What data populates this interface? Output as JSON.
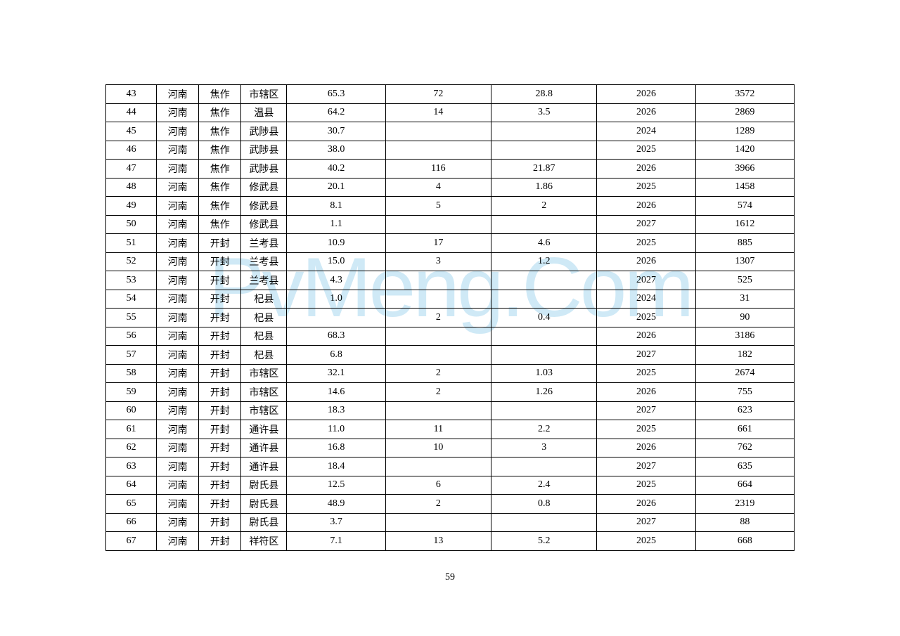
{
  "watermark_text": "PvMeng.Com",
  "page_number": "59",
  "table": {
    "column_widths": [
      "7.2%",
      "6%",
      "6%",
      "6.5%",
      "14%",
      "15%",
      "15%",
      "14%",
      "14%"
    ],
    "border_color": "#000000",
    "background_color": "#ffffff",
    "font_size": 14,
    "rows": [
      [
        "43",
        "河南",
        "焦作",
        "市辖区",
        "65.3",
        "72",
        "28.8",
        "2026",
        "3572"
      ],
      [
        "44",
        "河南",
        "焦作",
        "温县",
        "64.2",
        "14",
        "3.5",
        "2026",
        "2869"
      ],
      [
        "45",
        "河南",
        "焦作",
        "武陟县",
        "30.7",
        "",
        "",
        "2024",
        "1289"
      ],
      [
        "46",
        "河南",
        "焦作",
        "武陟县",
        "38.0",
        "",
        "",
        "2025",
        "1420"
      ],
      [
        "47",
        "河南",
        "焦作",
        "武陟县",
        "40.2",
        "116",
        "21.87",
        "2026",
        "3966"
      ],
      [
        "48",
        "河南",
        "焦作",
        "修武县",
        "20.1",
        "4",
        "1.86",
        "2025",
        "1458"
      ],
      [
        "49",
        "河南",
        "焦作",
        "修武县",
        "8.1",
        "5",
        "2",
        "2026",
        "574"
      ],
      [
        "50",
        "河南",
        "焦作",
        "修武县",
        "1.1",
        "",
        "",
        "2027",
        "1612"
      ],
      [
        "51",
        "河南",
        "开封",
        "兰考县",
        "10.9",
        "17",
        "4.6",
        "2025",
        "885"
      ],
      [
        "52",
        "河南",
        "开封",
        "兰考县",
        "15.0",
        "3",
        "1.2",
        "2026",
        "1307"
      ],
      [
        "53",
        "河南",
        "开封",
        "兰考县",
        "4.3",
        "",
        "",
        "2027",
        "525"
      ],
      [
        "54",
        "河南",
        "开封",
        "杞县",
        "1.0",
        "",
        "",
        "2024",
        "31"
      ],
      [
        "55",
        "河南",
        "开封",
        "杞县",
        "",
        "2",
        "0.4",
        "2025",
        "90"
      ],
      [
        "56",
        "河南",
        "开封",
        "杞县",
        "68.3",
        "",
        "",
        "2026",
        "3186"
      ],
      [
        "57",
        "河南",
        "开封",
        "杞县",
        "6.8",
        "",
        "",
        "2027",
        "182"
      ],
      [
        "58",
        "河南",
        "开封",
        "市辖区",
        "32.1",
        "2",
        "1.03",
        "2025",
        "2674"
      ],
      [
        "59",
        "河南",
        "开封",
        "市辖区",
        "14.6",
        "2",
        "1.26",
        "2026",
        "755"
      ],
      [
        "60",
        "河南",
        "开封",
        "市辖区",
        "18.3",
        "",
        "",
        "2027",
        "623"
      ],
      [
        "61",
        "河南",
        "开封",
        "通许县",
        "11.0",
        "11",
        "2.2",
        "2025",
        "661"
      ],
      [
        "62",
        "河南",
        "开封",
        "通许县",
        "16.8",
        "10",
        "3",
        "2026",
        "762"
      ],
      [
        "63",
        "河南",
        "开封",
        "通许县",
        "18.4",
        "",
        "",
        "2027",
        "635"
      ],
      [
        "64",
        "河南",
        "开封",
        "尉氏县",
        "12.5",
        "6",
        "2.4",
        "2025",
        "664"
      ],
      [
        "65",
        "河南",
        "开封",
        "尉氏县",
        "48.9",
        "2",
        "0.8",
        "2026",
        "2319"
      ],
      [
        "66",
        "河南",
        "开封",
        "尉氏县",
        "3.7",
        "",
        "",
        "2027",
        "88"
      ],
      [
        "67",
        "河南",
        "开封",
        "祥符区",
        "7.1",
        "13",
        "5.2",
        "2025",
        "668"
      ]
    ]
  }
}
